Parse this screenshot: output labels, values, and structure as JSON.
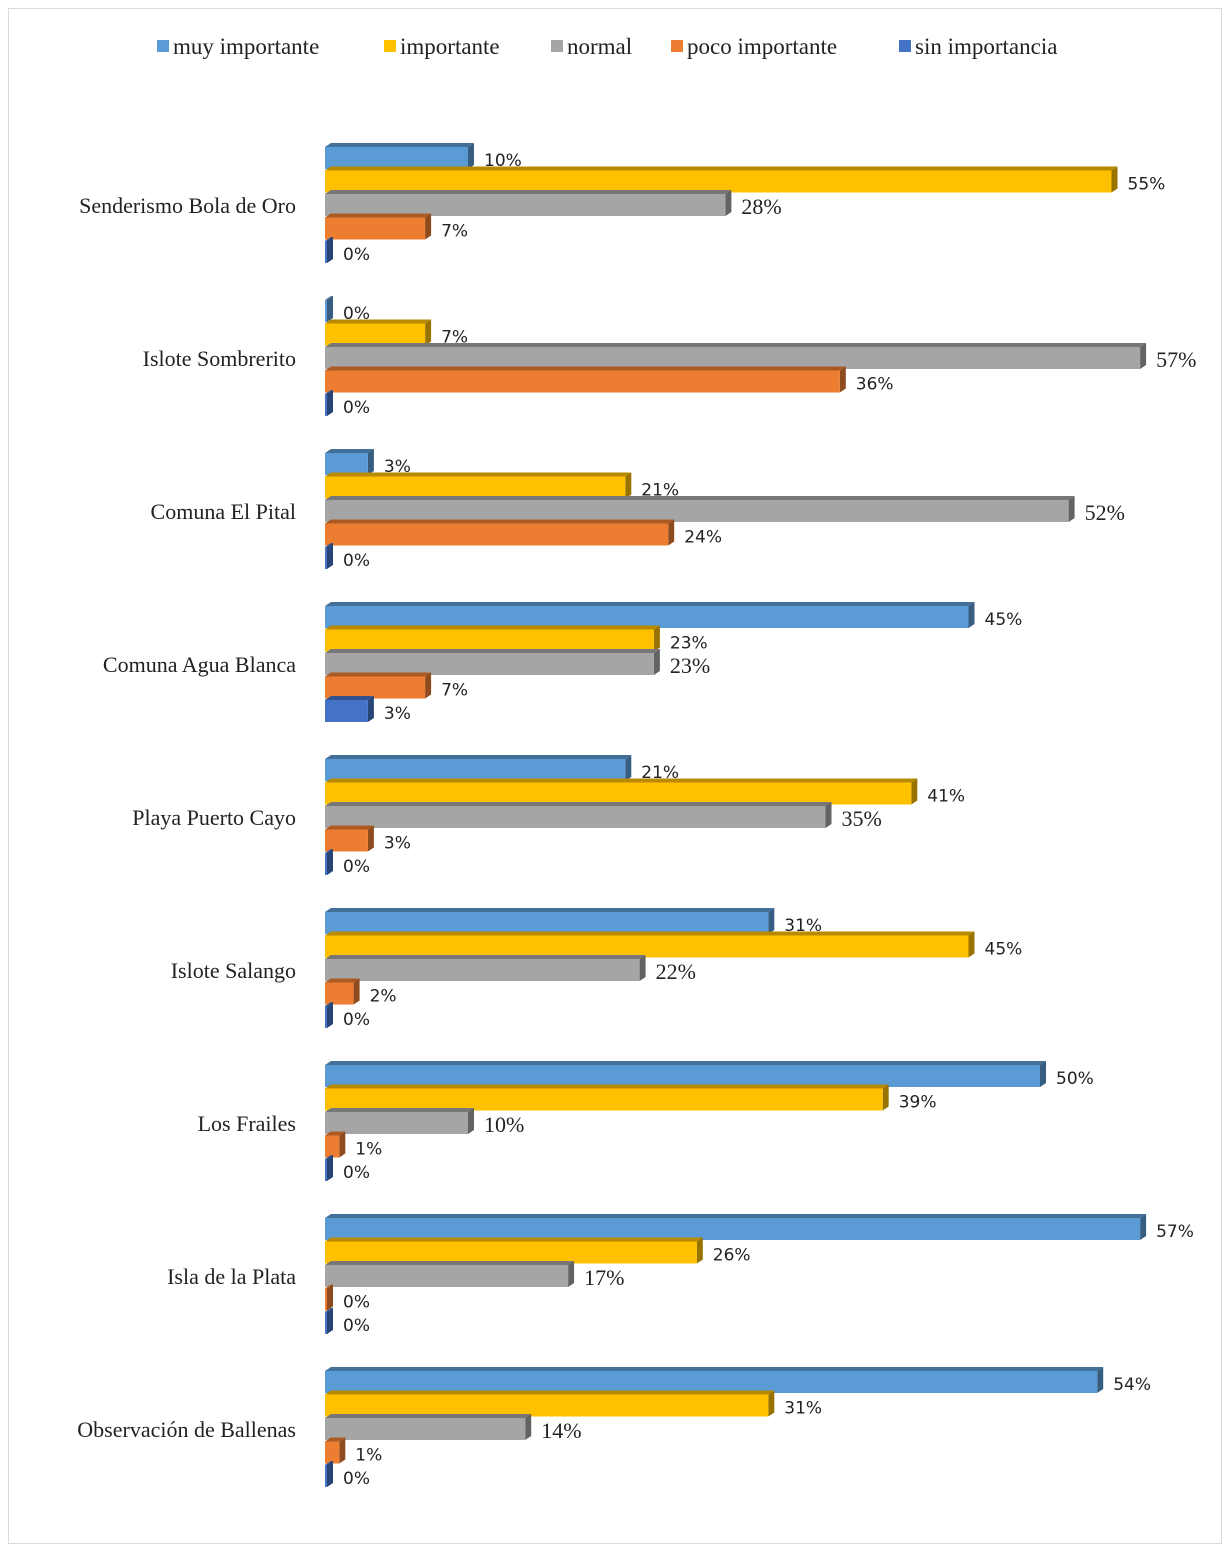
{
  "chart_data": {
    "type": "bar",
    "orientation": "horizontal",
    "style": "3d-clustered",
    "legend_position": "top",
    "grid": false,
    "xlim": [
      0,
      57
    ],
    "categories": [
      "Senderismo Bola de Oro",
      "Islote Sombrerito",
      "Comuna El Pital",
      "Comuna Agua Blanca",
      "Playa Puerto Cayo",
      "Islote Salango",
      "Los Frailes",
      "Isla de la Plata",
      "Observación de Ballenas"
    ],
    "series": [
      {
        "name": "muy importante",
        "color": "#5b9bd5",
        "values": [
          10,
          0,
          3,
          45,
          21,
          31,
          50,
          57,
          54
        ],
        "labels": [
          "10%",
          "0%",
          "3%",
          "45%",
          "21%",
          "31%",
          "50%",
          "57%",
          "54%"
        ]
      },
      {
        "name": "importante",
        "color": "#ffc000",
        "values": [
          55,
          7,
          21,
          23,
          41,
          45,
          39,
          26,
          31
        ],
        "labels": [
          "55%",
          "7%",
          "21%",
          "23%",
          "41%",
          "45%",
          "39%",
          "26%",
          "31%"
        ]
      },
      {
        "name": "normal",
        "color": "#a5a5a5",
        "values": [
          28,
          57,
          52,
          23,
          35,
          22,
          10,
          17,
          14
        ],
        "labels": [
          "28%",
          "57%",
          "52%",
          "23%",
          "35%",
          "22%",
          "10%",
          "17%",
          "14%"
        ]
      },
      {
        "name": "poco importante",
        "color": "#ed7d31",
        "values": [
          7,
          36,
          24,
          7,
          3,
          2,
          1,
          0,
          1
        ],
        "labels": [
          "7%",
          "36%",
          "24%",
          "7%",
          "3%",
          "2%",
          "1%",
          "0%",
          "1%"
        ]
      },
      {
        "name": "sin importancia",
        "color": "#4472c4",
        "values": [
          0,
          0,
          0,
          3,
          0,
          0,
          0,
          0,
          0
        ],
        "labels": [
          "0%",
          "0%",
          "0%",
          "3%",
          "0%",
          "0%",
          "0%",
          "0%",
          "0%"
        ]
      }
    ]
  }
}
